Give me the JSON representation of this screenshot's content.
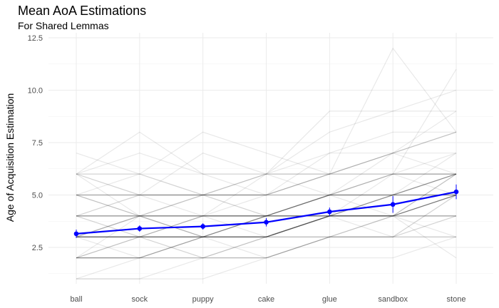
{
  "chart_data": {
    "type": "line",
    "title": "Mean AoA Estimations",
    "subtitle": "For Shared Lemmas",
    "xlabel": "",
    "ylabel": "Age of Acquisition Estimation",
    "categories": [
      "ball",
      "sock",
      "puppy",
      "cake",
      "glue",
      "sandbox",
      "stone"
    ],
    "ylim": [
      0.9,
      12.5
    ],
    "yticks": [
      2.5,
      5.0,
      7.5,
      10.0,
      12.5
    ],
    "ytick_labels": [
      "2.5",
      "5.0",
      "7.5",
      "10.0",
      "12.5"
    ],
    "grid": true,
    "series": [
      {
        "values": [
          3.15,
          3.4,
          3.5,
          3.7,
          4.2,
          4.55,
          5.15
        ],
        "error": [
          0.2,
          0.15,
          0.15,
          0.2,
          0.2,
          0.4,
          0.35
        ],
        "color": "#0000ff"
      }
    ],
    "individual_lines": [
      [
        3,
        3,
        3,
        3,
        4,
        4,
        5
      ],
      [
        3,
        3,
        3,
        3,
        4,
        4,
        5
      ],
      [
        3,
        3,
        3,
        3,
        4,
        4,
        5
      ],
      [
        3,
        4,
        4,
        4,
        5,
        5,
        6
      ],
      [
        3,
        4,
        4,
        4,
        5,
        5,
        6
      ],
      [
        4,
        4,
        4,
        4,
        4,
        4,
        4
      ],
      [
        2,
        2,
        2,
        2,
        3,
        3,
        3
      ],
      [
        2,
        2,
        2,
        2,
        3,
        3,
        3
      ],
      [
        3,
        2,
        3,
        3,
        3,
        4,
        4
      ],
      [
        2,
        3,
        3,
        4,
        4,
        5,
        5
      ],
      [
        2,
        3,
        3,
        4,
        4,
        5,
        5
      ],
      [
        4,
        3,
        3,
        4,
        5,
        6,
        6
      ],
      [
        3,
        3,
        4,
        4,
        4,
        5,
        6
      ],
      [
        5,
        4,
        3,
        4,
        5,
        6,
        6
      ],
      [
        5,
        5,
        5,
        5,
        5,
        5,
        5
      ],
      [
        5,
        5,
        5,
        5,
        5,
        5,
        5
      ],
      [
        4,
        4,
        4,
        4,
        4,
        4,
        4
      ],
      [
        2,
        2,
        3,
        3,
        4,
        4,
        5
      ],
      [
        4,
        4,
        4,
        3,
        4,
        4,
        6
      ],
      [
        3,
        4,
        3,
        3,
        4,
        3,
        5
      ],
      [
        6,
        5,
        5,
        5,
        6,
        6,
        6
      ],
      [
        6,
        4,
        5,
        4,
        5,
        5,
        5
      ],
      [
        2,
        4,
        3,
        3,
        4,
        4,
        5
      ],
      [
        3,
        3,
        2,
        2,
        3,
        4,
        4
      ],
      [
        2,
        2,
        3,
        2,
        3,
        3,
        5
      ],
      [
        4,
        3,
        3,
        4,
        4,
        4,
        6
      ],
      [
        1,
        1,
        1,
        2,
        2,
        2,
        3
      ],
      [
        1,
        1,
        2,
        2,
        3,
        3,
        4
      ],
      [
        1,
        2,
        2,
        3,
        4,
        4,
        5
      ],
      [
        3,
        3,
        4,
        5,
        5,
        6,
        6
      ],
      [
        6,
        6,
        6,
        6,
        6,
        6,
        6
      ],
      [
        5,
        6,
        5,
        5,
        6,
        7,
        7
      ],
      [
        6,
        8,
        6,
        5,
        6,
        7,
        6
      ],
      [
        6,
        7,
        6,
        6,
        5,
        7,
        8
      ],
      [
        5,
        5,
        7,
        6,
        6,
        7,
        8
      ],
      [
        7,
        6,
        8,
        7,
        6,
        7,
        8
      ],
      [
        4,
        4,
        5,
        6,
        7,
        8,
        8
      ],
      [
        3,
        4,
        5,
        5,
        7,
        7,
        9
      ],
      [
        4,
        5,
        5,
        6,
        9,
        9,
        10
      ],
      [
        4,
        5,
        5,
        5,
        6,
        6,
        11
      ],
      [
        5,
        4,
        4,
        6,
        6,
        12,
        8
      ],
      [
        6,
        6,
        5,
        6,
        8,
        9,
        9
      ],
      [
        3,
        3,
        3,
        3,
        3,
        4,
        6
      ],
      [
        2,
        3,
        4,
        4,
        5,
        6,
        7
      ],
      [
        4,
        4,
        4,
        4,
        4,
        5,
        7
      ],
      [
        3,
        3,
        3,
        4,
        5,
        5,
        6
      ],
      [
        2,
        2,
        2,
        3,
        4,
        4,
        4
      ],
      [
        3,
        3,
        4,
        4,
        5,
        4,
        5
      ],
      [
        3,
        3,
        3,
        4,
        4,
        4,
        3
      ],
      [
        3,
        3,
        3,
        3,
        3,
        3,
        3
      ],
      [
        2,
        2,
        3,
        3,
        4,
        4,
        2
      ],
      [
        3,
        3,
        2,
        3,
        4,
        5,
        6
      ],
      [
        4,
        4,
        3,
        3,
        4,
        4,
        5
      ],
      [
        6,
        5,
        4,
        4,
        5,
        5,
        6
      ],
      [
        5,
        5,
        5,
        4,
        4,
        5,
        5
      ],
      [
        2,
        2,
        3,
        3,
        3,
        3,
        4
      ],
      [
        5,
        4,
        4,
        4,
        4,
        6,
        5
      ]
    ],
    "individual_color": "#000000"
  }
}
